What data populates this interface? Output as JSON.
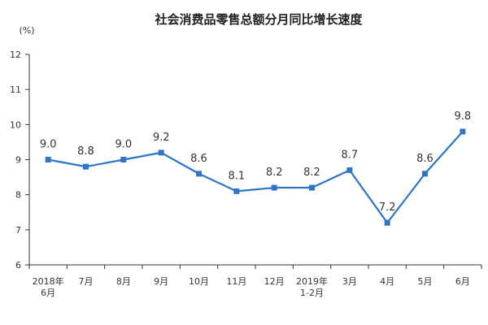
{
  "chart_data": {
    "type": "line",
    "title": "社会消费品零售总额分月同比增长速度",
    "ylabel": "(%)",
    "xlabel": "",
    "ylim": [
      6,
      12
    ],
    "yticks": [
      6,
      7,
      8,
      9,
      10,
      11,
      12
    ],
    "grid": false,
    "legend": "none",
    "color": "#2e75c7",
    "categories": [
      [
        "2018年",
        "6月"
      ],
      [
        "7月"
      ],
      [
        "8月"
      ],
      [
        "9月"
      ],
      [
        "10月"
      ],
      [
        "11月"
      ],
      [
        "12月"
      ],
      [
        "2019年",
        "1-2月"
      ],
      [
        "3月"
      ],
      [
        "4月"
      ],
      [
        "5月"
      ],
      [
        "6月"
      ]
    ],
    "series": [
      {
        "values": [
          9.0,
          8.8,
          9.0,
          9.2,
          8.6,
          8.1,
          8.2,
          8.2,
          8.7,
          7.2,
          8.6,
          9.8
        ],
        "labels": [
          "9.0",
          "8.8",
          "9.0",
          "9.2",
          "8.6",
          "8.1",
          "8.2",
          "8.2",
          "8.7",
          "7.2",
          "8.6",
          "9.8"
        ]
      }
    ]
  }
}
